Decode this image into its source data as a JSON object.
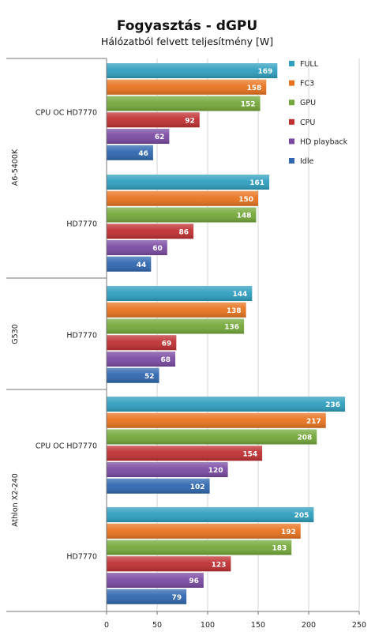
{
  "chart_data": {
    "type": "bar",
    "orientation": "horizontal",
    "title": "Fogyasztás - dGPU",
    "subtitle": "Hálózatból felvett teljesítmény [W]",
    "xlim": [
      0,
      250
    ],
    "x_ticks": [
      0,
      50,
      100,
      150,
      200,
      250
    ],
    "legend_position": "top-right",
    "series": [
      {
        "name": "FULL",
        "color": "#2f9fbf"
      },
      {
        "name": "FC3",
        "color": "#e8731f"
      },
      {
        "name": "GPU",
        "color": "#74a83a"
      },
      {
        "name": "CPU",
        "color": "#bf2f31"
      },
      {
        "name": "HD playback",
        "color": "#7a4aa3"
      },
      {
        "name": "Idle",
        "color": "#2f67b0"
      }
    ],
    "groups": [
      {
        "name": "A6-5400K",
        "categories": [
          {
            "label": "CPU OC HD7770",
            "values": [
              169,
              158,
              152,
              92,
              62,
              46
            ]
          },
          {
            "label": "HD7770",
            "values": [
              161,
              150,
              148,
              86,
              60,
              44
            ]
          }
        ]
      },
      {
        "name": "G530",
        "categories": [
          {
            "label": "HD7770",
            "values": [
              144,
              138,
              136,
              69,
              68,
              52
            ]
          }
        ]
      },
      {
        "name": "Athlon X2-240",
        "categories": [
          {
            "label": "CPU OC HD7770",
            "values": [
              236,
              217,
              208,
              154,
              120,
              102
            ]
          },
          {
            "label": "HD7770",
            "values": [
              205,
              192,
              183,
              123,
              96,
              79
            ]
          }
        ]
      }
    ]
  }
}
